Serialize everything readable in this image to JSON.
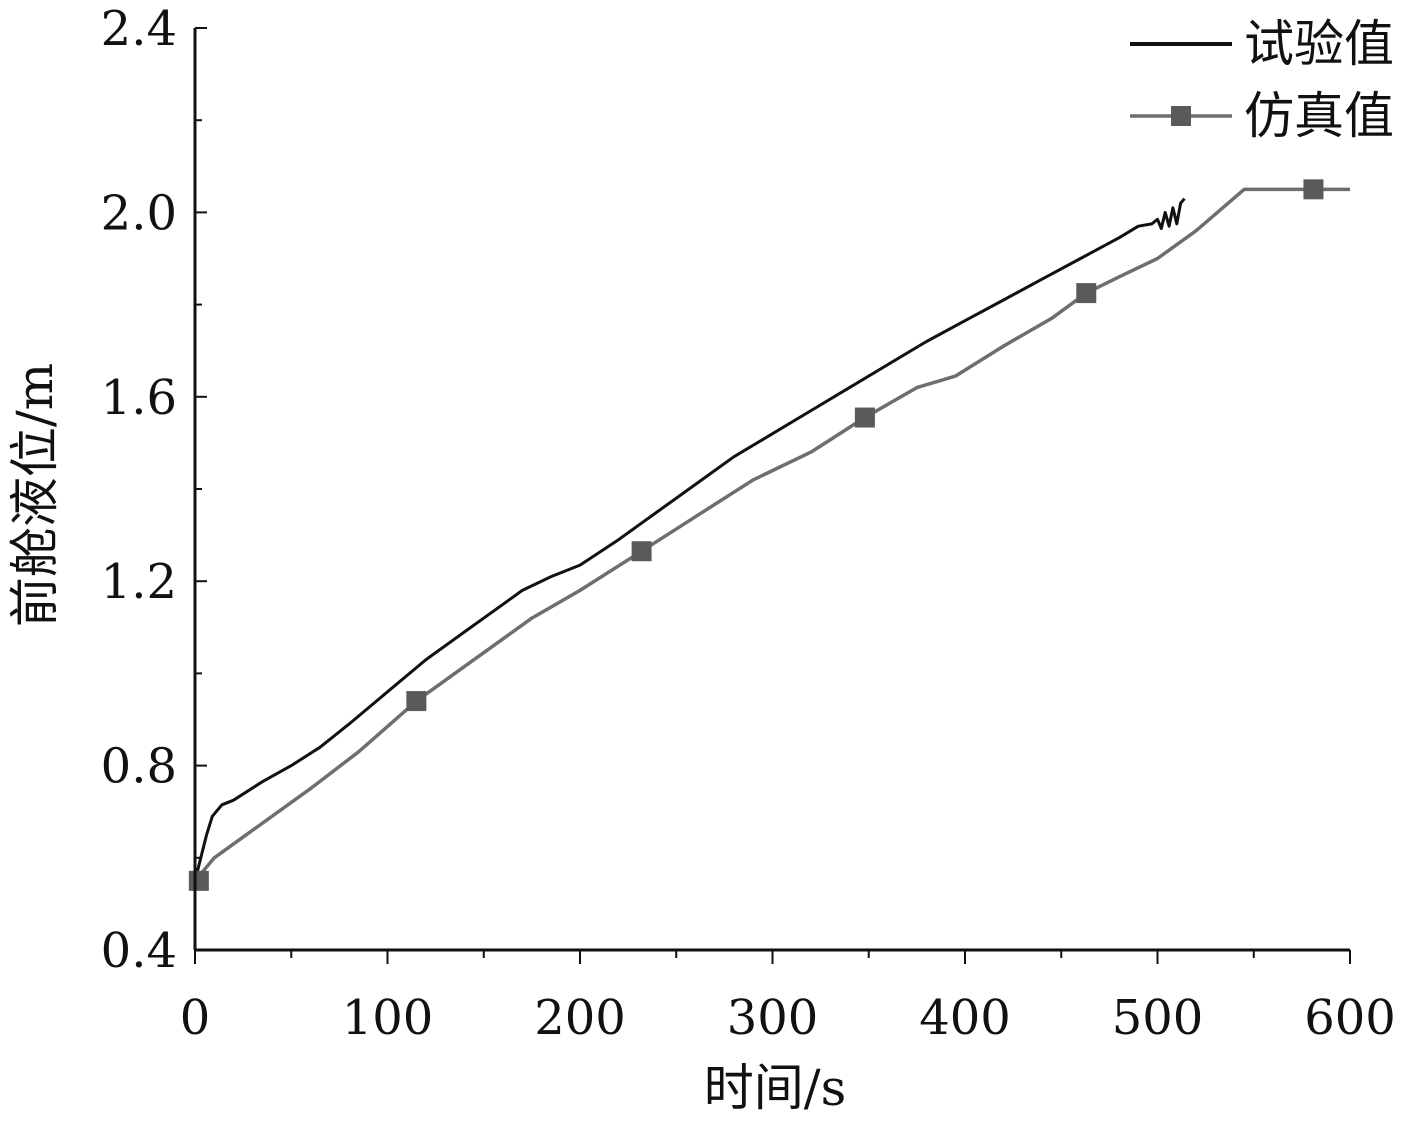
{
  "chart_data": {
    "type": "line",
    "xlabel": "时间/s",
    "ylabel": "前舱液位/m",
    "xlim": [
      0,
      600
    ],
    "ylim": [
      0.4,
      2.4
    ],
    "x_ticks": [
      "0",
      "100",
      "200",
      "300",
      "400",
      "500",
      "600"
    ],
    "y_ticks": [
      "0.4",
      "0.8",
      "1.2",
      "1.6",
      "2.0",
      "2.4"
    ],
    "legend_position": "top-right",
    "series": [
      {
        "name": "试验值",
        "color": "#111111",
        "marker": "none",
        "points": [
          [
            0,
            0.55
          ],
          [
            3,
            0.6
          ],
          [
            6,
            0.65
          ],
          [
            9,
            0.69
          ],
          [
            14,
            0.715
          ],
          [
            20,
            0.725
          ],
          [
            35,
            0.765
          ],
          [
            50,
            0.8
          ],
          [
            65,
            0.84
          ],
          [
            80,
            0.89
          ],
          [
            100,
            0.96
          ],
          [
            120,
            1.03
          ],
          [
            140,
            1.09
          ],
          [
            160,
            1.15
          ],
          [
            170,
            1.18
          ],
          [
            185,
            1.21
          ],
          [
            200,
            1.235
          ],
          [
            220,
            1.29
          ],
          [
            240,
            1.35
          ],
          [
            260,
            1.41
          ],
          [
            280,
            1.47
          ],
          [
            300,
            1.52
          ],
          [
            320,
            1.57
          ],
          [
            340,
            1.62
          ],
          [
            360,
            1.67
          ],
          [
            380,
            1.72
          ],
          [
            400,
            1.765
          ],
          [
            420,
            1.81
          ],
          [
            440,
            1.855
          ],
          [
            460,
            1.9
          ],
          [
            480,
            1.945
          ],
          [
            490,
            1.97
          ],
          [
            497,
            1.975
          ],
          [
            500,
            1.985
          ],
          [
            502,
            1.965
          ],
          [
            504,
            2.0
          ],
          [
            506,
            1.97
          ],
          [
            508,
            2.01
          ],
          [
            510,
            1.975
          ],
          [
            512,
            2.02
          ],
          [
            514,
            2.03
          ]
        ]
      },
      {
        "name": "仿真值",
        "color": "#6e6e6e",
        "marker": "square",
        "points": [
          [
            0,
            0.55
          ],
          [
            10,
            0.6
          ],
          [
            30,
            0.66
          ],
          [
            60,
            0.75
          ],
          [
            85,
            0.83
          ],
          [
            115,
            0.94
          ],
          [
            145,
            1.03
          ],
          [
            175,
            1.12
          ],
          [
            200,
            1.18
          ],
          [
            232,
            1.265
          ],
          [
            260,
            1.34
          ],
          [
            290,
            1.42
          ],
          [
            320,
            1.48
          ],
          [
            348,
            1.555
          ],
          [
            375,
            1.62
          ],
          [
            395,
            1.645
          ],
          [
            420,
            1.71
          ],
          [
            445,
            1.77
          ],
          [
            463,
            1.825
          ],
          [
            480,
            1.86
          ],
          [
            500,
            1.9
          ],
          [
            520,
            1.96
          ],
          [
            545,
            2.05
          ],
          [
            580,
            2.05
          ],
          [
            600,
            2.05
          ]
        ],
        "marker_points": [
          [
            2,
            0.55
          ],
          [
            115,
            0.94
          ],
          [
            232,
            1.265
          ],
          [
            348,
            1.555
          ],
          [
            463,
            1.825
          ],
          [
            581,
            2.05
          ]
        ]
      }
    ]
  }
}
